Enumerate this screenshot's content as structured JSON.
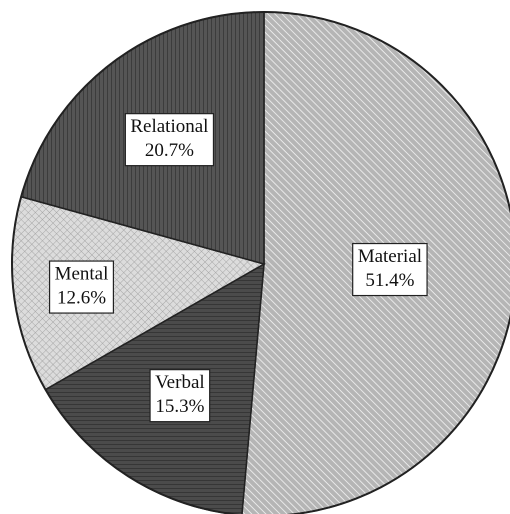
{
  "chart_data": {
    "type": "pie",
    "categories": [
      "Material",
      "Verbal",
      "Mental",
      "Relational"
    ],
    "values": [
      51.4,
      15.3,
      12.6,
      20.7
    ],
    "value_labels": [
      "51.4%",
      "15.3%",
      "12.6%",
      "20.7%"
    ],
    "colors": [
      "#b5b5b5",
      "#4b4b4b",
      "#dcdcdc",
      "#555555"
    ]
  }
}
